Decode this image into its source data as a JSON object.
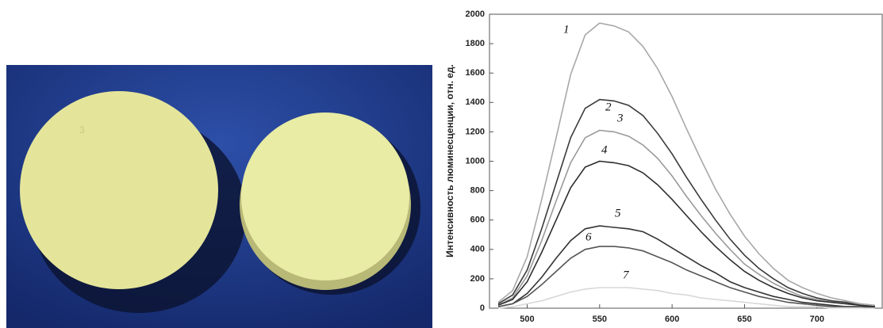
{
  "photo": {
    "label": "3"
  },
  "chart_data": {
    "type": "line",
    "y_label": "Интенсивность люминесценции, отн. ед.",
    "x": [
      480,
      490,
      500,
      510,
      520,
      530,
      540,
      550,
      560,
      570,
      580,
      590,
      600,
      610,
      620,
      630,
      640,
      650,
      660,
      670,
      680,
      690,
      700,
      710,
      720,
      730,
      740
    ],
    "xlim": [
      474,
      745
    ],
    "xticks": [
      500,
      550,
      600,
      650,
      700
    ],
    "ylim": [
      0,
      2000
    ],
    "yticks": [
      0,
      200,
      400,
      600,
      800,
      1000,
      1200,
      1400,
      1600,
      1800,
      2000
    ],
    "series": [
      {
        "name": "1",
        "color": "#a8a8a8",
        "values": [
          40,
          120,
          350,
          740,
          1160,
          1590,
          1860,
          1940,
          1920,
          1880,
          1780,
          1630,
          1440,
          1220,
          1010,
          810,
          640,
          490,
          370,
          270,
          190,
          140,
          100,
          70,
          50,
          30,
          20
        ]
      },
      {
        "name": "2",
        "color": "#3a3a3a",
        "values": [
          30,
          90,
          260,
          540,
          850,
          1160,
          1360,
          1420,
          1410,
          1380,
          1310,
          1190,
          1050,
          890,
          740,
          600,
          470,
          360,
          270,
          200,
          140,
          100,
          70,
          50,
          40,
          20,
          10
        ]
      },
      {
        "name": "3",
        "color": "#9a9a9a",
        "values": [
          20,
          70,
          220,
          460,
          730,
          990,
          1160,
          1210,
          1200,
          1170,
          1110,
          1020,
          900,
          760,
          630,
          510,
          400,
          300,
          230,
          170,
          120,
          80,
          60,
          40,
          30,
          20,
          10
        ]
      },
      {
        "name": "4",
        "color": "#2e2e2e",
        "values": [
          20,
          60,
          180,
          380,
          600,
          820,
          960,
          1000,
          990,
          970,
          920,
          840,
          740,
          630,
          520,
          420,
          330,
          250,
          190,
          140,
          100,
          70,
          50,
          40,
          30,
          20,
          10
        ]
      },
      {
        "name": "5",
        "color": "#333333",
        "values": [
          10,
          30,
          100,
          210,
          340,
          460,
          540,
          560,
          550,
          540,
          520,
          470,
          410,
          350,
          290,
          240,
          180,
          140,
          110,
          80,
          60,
          40,
          30,
          20,
          10,
          10,
          10
        ]
      },
      {
        "name": "6",
        "color": "#555555",
        "values": [
          10,
          30,
          80,
          160,
          250,
          340,
          400,
          420,
          420,
          410,
          390,
          350,
          310,
          260,
          220,
          180,
          140,
          110,
          80,
          60,
          40,
          30,
          20,
          10,
          10,
          10,
          0
        ]
      },
      {
        "name": "7",
        "color": "#d8d8d8",
        "values": [
          0,
          10,
          30,
          50,
          80,
          110,
          130,
          140,
          140,
          140,
          130,
          120,
          100,
          90,
          70,
          60,
          50,
          40,
          30,
          20,
          10,
          10,
          10,
          0,
          0,
          0,
          0
        ]
      }
    ]
  }
}
